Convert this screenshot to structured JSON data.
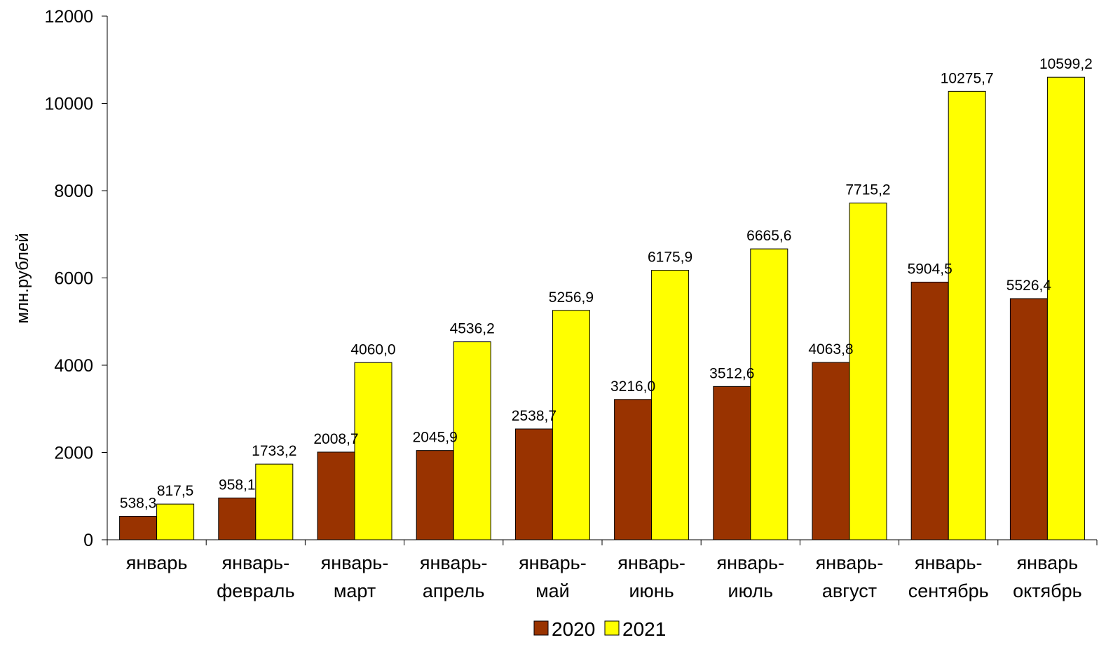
{
  "chart_data": {
    "type": "bar",
    "categories": [
      [
        "январь"
      ],
      [
        "январь-",
        "февраль"
      ],
      [
        "январь-",
        "март"
      ],
      [
        "январь-",
        "апрель"
      ],
      [
        "январь-",
        "май"
      ],
      [
        "январь-",
        "июнь"
      ],
      [
        "январь-",
        "июль"
      ],
      [
        "январь-",
        "август"
      ],
      [
        "январь-",
        "сентябрь"
      ],
      [
        "январь",
        "октябрь"
      ]
    ],
    "series": [
      {
        "name": "2020",
        "color": "#993300",
        "values": [
          538.3,
          958.1,
          2008.7,
          2045.9,
          2538.7,
          3216.0,
          3512.6,
          4063.8,
          5904.5,
          5526.4
        ],
        "labels": [
          "538,3",
          "958,1",
          "2008,7",
          "2045,9",
          "2538,7",
          "3216,0",
          "3512,6",
          "4063,8",
          "5904,5",
          "5526,4"
        ]
      },
      {
        "name": "2021",
        "color": "#FFFF00",
        "values": [
          817.5,
          1733.2,
          4060.0,
          4536.2,
          5256.9,
          6175.9,
          6665.6,
          7715.2,
          10275.7,
          10599.2
        ],
        "labels": [
          "817,5",
          "1733,2",
          "4060,0",
          "4536,2",
          "5256,9",
          "6175,9",
          "6665,6",
          "7715,2",
          "10275,7",
          "10599,2"
        ]
      }
    ],
    "ylabel": "млн.рублей",
    "ylim": [
      0,
      12000
    ],
    "yticks": [
      0,
      2000,
      4000,
      6000,
      8000,
      10000,
      12000
    ],
    "grid": false,
    "legend_position": "bottom-center"
  }
}
